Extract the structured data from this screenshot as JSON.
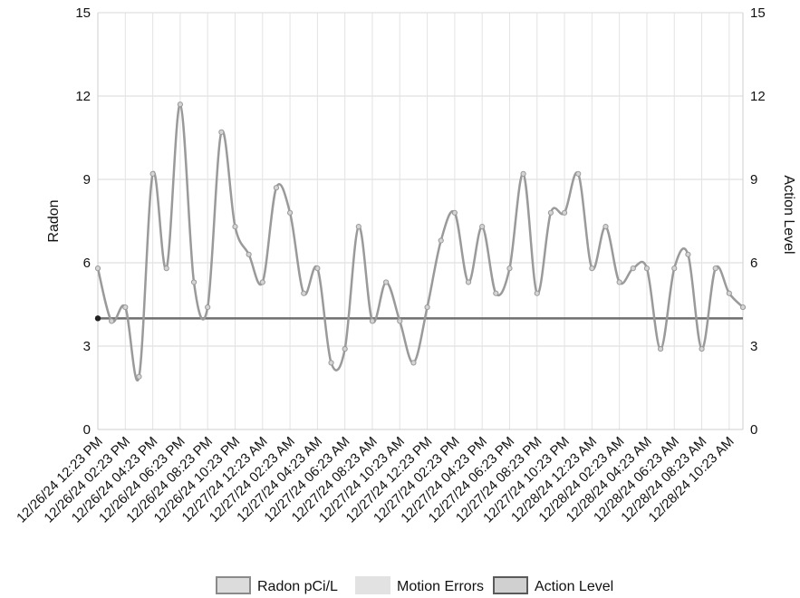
{
  "chart_data": {
    "type": "line",
    "x_tick_labels": [
      "12/26/24 12:23 PM",
      "12/26/24 02:23 PM",
      "12/26/24 04:23 PM",
      "12/26/24 06:23 PM",
      "12/26/24 08:23 PM",
      "12/26/24 10:23 PM",
      "12/27/24 12:23 AM",
      "12/27/24 02:23 AM",
      "12/27/24 04:23 AM",
      "12/27/24 06:23 AM",
      "12/27/24 08:23 AM",
      "12/27/24 10:23 AM",
      "12/27/24 12:23 PM",
      "12/27/24 02:23 PM",
      "12/27/24 04:23 PM",
      "12/27/24 06:23 PM",
      "12/27/24 08:23 PM",
      "12/27/24 10:23 PM",
      "12/28/24 12:23 AM",
      "12/28/24 02:23 AM",
      "12/28/24 04:23 AM",
      "12/28/24 06:23 AM",
      "12/28/24 08:23 AM",
      "12/28/24 10:23 AM"
    ],
    "categories_count": 48,
    "series": [
      {
        "name": "Radon pCi/L",
        "color": "#9a9a9a",
        "values": [
          5.8,
          3.9,
          4.4,
          1.9,
          9.2,
          5.8,
          11.7,
          5.3,
          4.4,
          10.7,
          7.3,
          6.3,
          5.3,
          8.7,
          7.8,
          4.9,
          5.8,
          2.4,
          2.9,
          7.3,
          3.9,
          5.3,
          3.9,
          2.4,
          4.4,
          6.8,
          7.8,
          5.3,
          7.3,
          4.9,
          5.8,
          9.2,
          4.9,
          7.8,
          7.8,
          9.2,
          5.8,
          7.3,
          5.3,
          5.8,
          5.8,
          2.9,
          5.8,
          6.3,
          2.9,
          5.8,
          4.9,
          4.4
        ]
      },
      {
        "name": "Motion Errors",
        "color": "#d9d9d9",
        "values": []
      },
      {
        "name": "Action Level",
        "color": "#6f6f6f",
        "values": [
          4.0
        ]
      }
    ],
    "ylabel_left": "Radon",
    "ylabel_right": "Action Level",
    "ylim": [
      0,
      15
    ],
    "y_ticks": [
      0,
      3,
      6,
      9,
      12,
      15
    ],
    "grid": true,
    "legend_position": "bottom"
  }
}
